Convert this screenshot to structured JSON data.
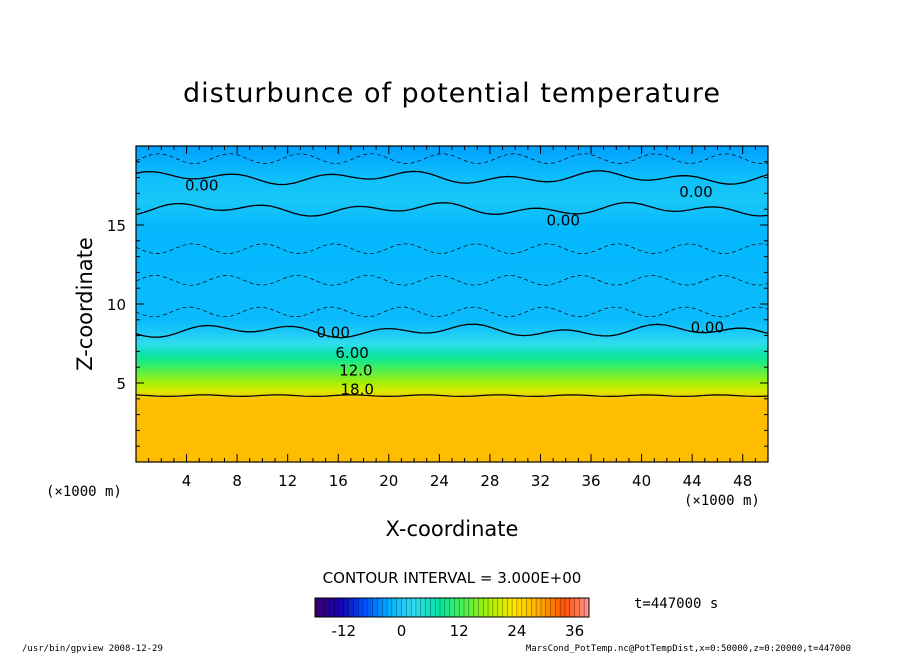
{
  "chart_data": {
    "type": "heatmap",
    "title": "disturbunce of potential temperature",
    "xlabel": "X-coordinate",
    "ylabel": "Z-coordinate",
    "x_unit": "(×1000 m)",
    "z_unit": "(×1000 m)",
    "xlim": [
      0,
      50
    ],
    "ylim": [
      0,
      20
    ],
    "x_ticks": [
      4,
      8,
      12,
      16,
      20,
      24,
      28,
      32,
      36,
      40,
      44,
      48
    ],
    "y_ticks": [
      5,
      10,
      15
    ],
    "contour_interval_text": "CONTOUR INTERVAL = 3.000E+00",
    "contour_labels": [
      {
        "text": "0.00",
        "x": 5.2,
        "z": 17.5
      },
      {
        "text": "0.00",
        "x": 44.3,
        "z": 17.1
      },
      {
        "text": "0.00",
        "x": 33.8,
        "z": 15.3
      },
      {
        "text": "0.00",
        "x": 15.6,
        "z": 8.2
      },
      {
        "text": "6.00",
        "x": 17.1,
        "z": 6.9
      },
      {
        "text": "12.0",
        "x": 17.4,
        "z": 5.8
      },
      {
        "text": "18.0",
        "x": 17.5,
        "z": 4.6
      },
      {
        "text": "0.00",
        "x": 45.2,
        "z": 8.5
      }
    ],
    "profile": {
      "z": [
        0,
        3.9,
        4.5,
        5.0,
        5.5,
        6.0,
        6.5,
        7.0,
        7.5,
        8.0,
        8.3,
        9.0,
        11.0,
        13.0,
        15.0,
        16.5,
        18.0,
        20.0
      ],
      "theta": [
        27,
        27,
        21,
        18,
        15,
        12,
        9,
        6,
        3,
        1,
        0,
        -1.5,
        -1.5,
        -2.0,
        -1.8,
        0,
        -1.0,
        -3.5
      ]
    },
    "colorbar": {
      "min": -18,
      "max": 39,
      "tick_values": [
        -12,
        0,
        12,
        24,
        36
      ],
      "tick_labels": [
        "-12",
        "0",
        "12",
        "24",
        "36"
      ],
      "colors": [
        "#3a0066",
        "#1400b4",
        "#0050ff",
        "#00b4ff",
        "#32dcf0",
        "#00e6a0",
        "#50f050",
        "#aaf000",
        "#ffe600",
        "#ffaa00",
        "#ff5000",
        "#ff9696"
      ]
    },
    "time_label": "t=447000 s"
  },
  "footer": {
    "left": "/usr/bin/gpview  2008-12-29",
    "right": "MarsCond_PotTemp.nc@PotTempDist,x=0:50000,z=0:20000,t=447000"
  }
}
